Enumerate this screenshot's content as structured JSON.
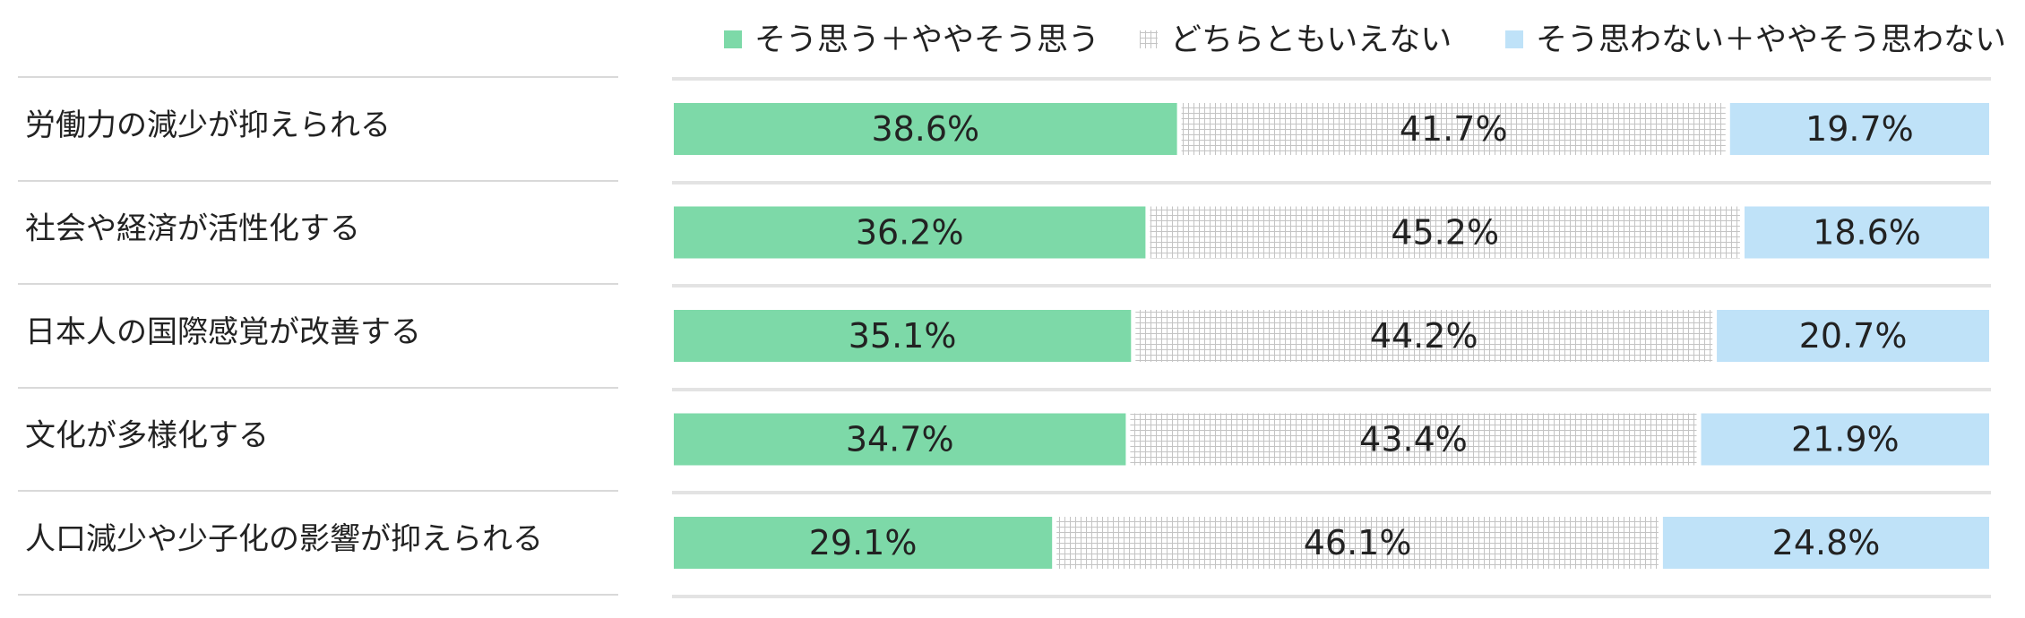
{
  "chart_data": {
    "type": "bar",
    "orientation": "horizontal",
    "stacked": "100%",
    "title": "",
    "categories": [
      "労働力の減少が抑えられる",
      "社会や経済が活性化する",
      "日本人の国際感覚が改善する",
      "文化が多様化する",
      "人口減少や少子化の影響が抑えられる"
    ],
    "series": [
      {
        "name": "そう思う＋ややそう思う",
        "color": "#7dd9a8",
        "pattern": "solid",
        "values": [
          38.6,
          36.2,
          35.1,
          34.7,
          29.1
        ],
        "labels": [
          "38.6%",
          "36.2%",
          "35.1%",
          "34.7%",
          "29.1%"
        ]
      },
      {
        "name": "どちらともいえない",
        "color": "#bdbdbd",
        "pattern": "fine-grid",
        "values": [
          41.7,
          45.2,
          44.2,
          43.4,
          46.1
        ],
        "labels": [
          "41.7%",
          "45.2%",
          "44.2%",
          "43.4%",
          "46.1%"
        ]
      },
      {
        "name": "そう思わない＋ややそう思わない",
        "color": "#bfe2f8",
        "pattern": "solid",
        "values": [
          19.7,
          18.6,
          20.7,
          21.9,
          24.8
        ],
        "labels": [
          "19.7%",
          "18.6%",
          "20.7%",
          "21.9%",
          "24.8%"
        ]
      }
    ],
    "xlim": [
      0,
      100
    ],
    "legend_position": "top-right",
    "grid": false
  }
}
